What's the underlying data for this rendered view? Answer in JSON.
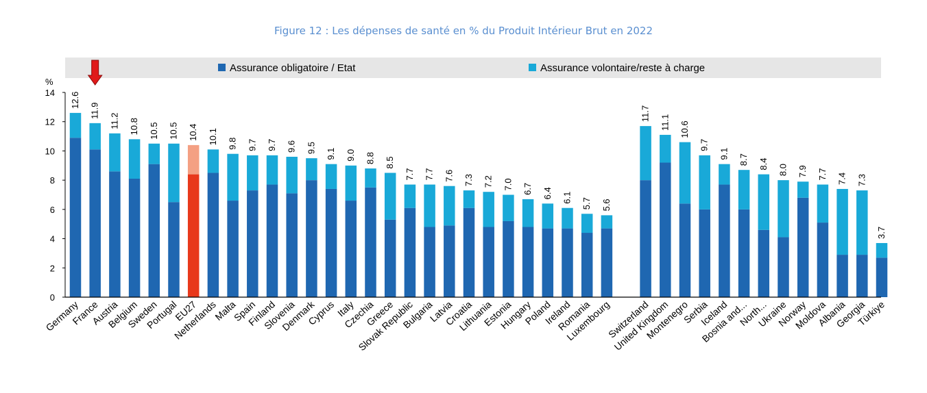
{
  "title": "Figure 12 : Les dépenses de santé en % du Produit Intérieur Brut en 2022",
  "chart_data": {
    "type": "bar",
    "stacked": true,
    "title": "Figure 12 : Les dépenses de santé en % du Produit Intérieur Brut en 2022",
    "ylabel": "%",
    "ylim": [
      0,
      14
    ],
    "yticks": [
      "0",
      "2",
      "4",
      "6",
      "8",
      "10",
      "12",
      "14"
    ],
    "legend_position": "top",
    "colors": {
      "compulsory": "#1f67b1",
      "voluntary": "#19a9d8",
      "eu_compulsory": "#e8381b",
      "eu_voluntary": "#f4a083",
      "legend_band": "#e6e6e6",
      "arrow": "#e01a1a"
    },
    "highlight_category": "EU27",
    "marker_category": "France",
    "marker_icon": "red-down-arrow",
    "categories": [
      "Germany",
      "France",
      "Austria",
      "Belgium",
      "Sweden",
      "Portugal",
      "EU27",
      "Netherlands",
      "Malta",
      "Spain",
      "Finland",
      "Slovenia",
      "Denmark",
      "Cyprus",
      "Italy",
      "Czechia",
      "Greece",
      "Slovak Republic",
      "Bulgaria",
      "Latvia",
      "Croatia",
      "Lithuania",
      "Estonia",
      "Hungary",
      "Poland",
      "Ireland",
      "Romania",
      "Luxembourg",
      "Switzerland",
      "United Kingdom",
      "Montenegro",
      "Serbia",
      "Iceland",
      "Bosnia and...",
      "North...",
      "Ukraine",
      "Norway",
      "Moldova",
      "Albania",
      "Georgia",
      "Türkiye"
    ],
    "group_break_after": "Luxembourg",
    "totals": [
      "12.6",
      "11.9",
      "11.2",
      "10.8",
      "10.5",
      "10.5",
      "10.4",
      "10.1",
      "9.8",
      "9.7",
      "9.7",
      "9.6",
      "9.5",
      "9.1",
      "9.0",
      "8.8",
      "8.5",
      "7.7",
      "7.7",
      "7.6",
      "7.3",
      "7.2",
      "7.0",
      "6.7",
      "6.4",
      "6.1",
      "5.7",
      "5.6",
      "11.7",
      "11.1",
      "10.6",
      "9.7",
      "9.1",
      "8.7",
      "8.4",
      "8.0",
      "7.9",
      "7.7",
      "7.4",
      "7.3",
      "3.7"
    ],
    "series": [
      {
        "name": "Assurance obligatoire / Etat",
        "values": [
          10.9,
          10.1,
          8.6,
          8.1,
          9.1,
          6.5,
          8.4,
          8.5,
          6.6,
          7.3,
          7.7,
          7.1,
          8.0,
          7.4,
          6.6,
          7.5,
          5.3,
          6.1,
          4.8,
          4.9,
          6.1,
          4.8,
          5.2,
          4.8,
          4.7,
          4.7,
          4.4,
          4.7,
          8.0,
          9.2,
          6.4,
          6.0,
          7.7,
          6.0,
          4.6,
          4.1,
          6.8,
          5.1,
          2.9,
          2.9,
          2.7
        ]
      },
      {
        "name": "Assurance volontaire/reste à charge",
        "values": [
          1.7,
          1.8,
          2.6,
          2.7,
          1.4,
          4.0,
          2.0,
          1.6,
          3.2,
          2.4,
          2.0,
          2.5,
          1.5,
          1.7,
          2.4,
          1.3,
          3.2,
          1.6,
          2.9,
          2.7,
          1.2,
          2.4,
          1.8,
          1.9,
          1.7,
          1.4,
          1.3,
          0.9,
          3.7,
          1.9,
          4.2,
          3.7,
          1.4,
          2.7,
          3.8,
          3.9,
          1.1,
          2.6,
          4.5,
          4.4,
          1.0
        ]
      }
    ]
  }
}
